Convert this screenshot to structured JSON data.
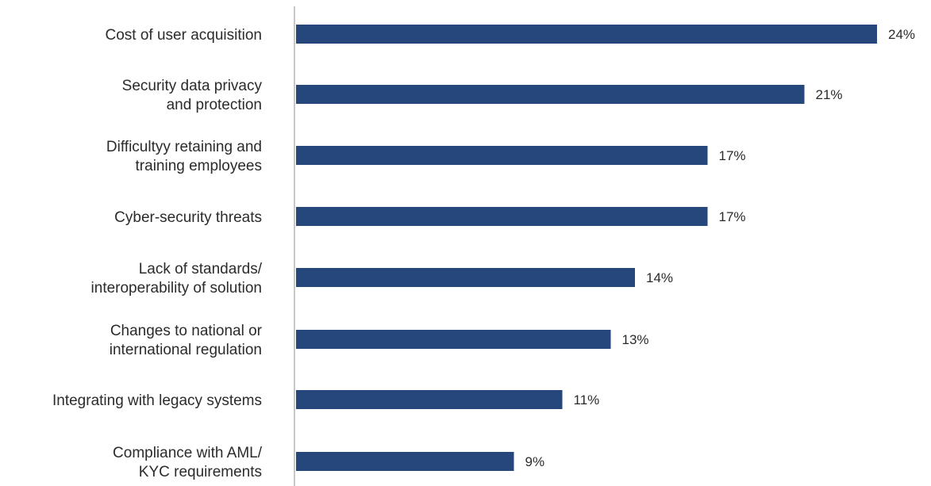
{
  "chart_data": {
    "type": "bar",
    "orientation": "horizontal",
    "categories": [
      [
        "Cost of user acquisition"
      ],
      [
        "Security data privacy",
        "and protection"
      ],
      [
        "Difficultyy retaining and",
        "training employees"
      ],
      [
        "Cyber-security threats"
      ],
      [
        "Lack of standards/",
        "interoperability of solution"
      ],
      [
        "Changes to national or",
        "international regulation"
      ],
      [
        "Integrating with legacy systems"
      ],
      [
        "Compliance with AML/",
        "KYC requirements"
      ]
    ],
    "values": [
      24,
      21,
      17,
      17,
      14,
      13,
      11,
      9
    ],
    "value_labels": [
      "24%",
      "21%",
      "17%",
      "17%",
      "14%",
      "13%",
      "11%",
      "9%"
    ],
    "value_unit": "%",
    "xlim": [
      0,
      24
    ],
    "grid": false,
    "legend": "none",
    "colors": {
      "bar": "#26477b",
      "axis": "#c8c8c8",
      "text": "#2b2b2b"
    }
  }
}
